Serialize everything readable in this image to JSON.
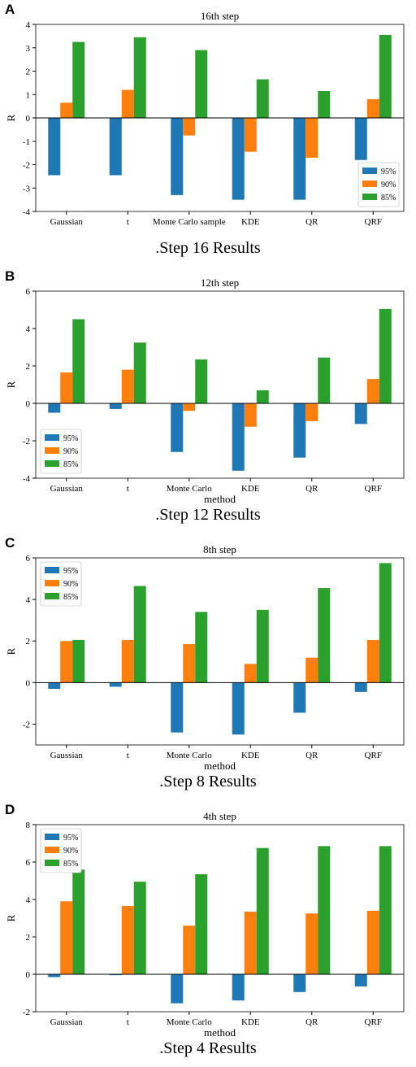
{
  "colors": {
    "s95": "#1f77b4",
    "s90": "#ff7f0e",
    "s85": "#2ca02c"
  },
  "panels": [
    {
      "letter": "A",
      "caption": ".Step 16 Results",
      "chart_data": {
        "type": "bar",
        "title": "16th step",
        "xlabel": "",
        "ylabel": "R",
        "ylim": [
          -4,
          4
        ],
        "yticks": [
          -4,
          -3,
          -2,
          -1,
          0,
          1,
          2,
          3,
          4
        ],
        "categories": [
          "Gaussian",
          "t",
          "Monte Carlo sample",
          "KDE",
          "QR",
          "QRF"
        ],
        "legend_position": "lower-right",
        "series": [
          {
            "name": "95%",
            "values": [
              -2.45,
              -2.45,
              -3.3,
              -3.5,
              -3.5,
              -1.8
            ]
          },
          {
            "name": "90%",
            "values": [
              0.65,
              1.2,
              -0.75,
              -1.45,
              -1.7,
              0.8
            ]
          },
          {
            "name": "85%",
            "values": [
              3.25,
              3.45,
              2.9,
              1.65,
              1.15,
              3.55
            ]
          }
        ]
      }
    },
    {
      "letter": "B",
      "caption": ".Step 12 Results",
      "chart_data": {
        "type": "bar",
        "title": "12th step",
        "xlabel": "method",
        "ylabel": "R",
        "ylim": [
          -4,
          6
        ],
        "yticks": [
          -4,
          -2,
          0,
          2,
          4,
          6
        ],
        "categories": [
          "Gaussian",
          "t",
          "Monte Carlo",
          "KDE",
          "QR",
          "QRF"
        ],
        "legend_position": "lower-left",
        "series": [
          {
            "name": "95%",
            "values": [
              -0.5,
              -0.3,
              -2.6,
              -3.6,
              -2.9,
              -1.1
            ]
          },
          {
            "name": "90%",
            "values": [
              1.65,
              1.8,
              -0.4,
              -1.25,
              -0.95,
              1.3
            ]
          },
          {
            "name": "85%",
            "values": [
              4.5,
              3.25,
              2.35,
              0.7,
              2.45,
              5.05
            ]
          }
        ]
      }
    },
    {
      "letter": "C",
      "caption": ".Step 8 Results",
      "chart_data": {
        "type": "bar",
        "title": "8th step",
        "xlabel": "method",
        "ylabel": "R",
        "ylim": [
          -3,
          6
        ],
        "yticks": [
          -2,
          0,
          2,
          4,
          6
        ],
        "categories": [
          "Gaussian",
          "t",
          "Monte Carlo",
          "KDE",
          "QR",
          "QRF"
        ],
        "legend_position": "upper-left",
        "series": [
          {
            "name": "95%",
            "values": [
              -0.3,
              -0.2,
              -2.4,
              -2.5,
              -1.45,
              -0.45
            ]
          },
          {
            "name": "90%",
            "values": [
              2.0,
              2.05,
              1.85,
              0.9,
              1.2,
              2.05
            ]
          },
          {
            "name": "85%",
            "values": [
              2.05,
              4.65,
              3.4,
              3.5,
              4.55,
              5.75
            ]
          }
        ]
      }
    },
    {
      "letter": "D",
      "caption": ".Step 4 Results",
      "chart_data": {
        "type": "bar",
        "title": "4th step",
        "xlabel": "method",
        "ylabel": "R",
        "ylim": [
          -2,
          8
        ],
        "yticks": [
          -2,
          0,
          2,
          4,
          6,
          8
        ],
        "categories": [
          "Gaussian",
          "t",
          "Monte Carlo",
          "KDE",
          "QR",
          "QRF"
        ],
        "legend_position": "upper-left",
        "series": [
          {
            "name": "95%",
            "values": [
              -0.15,
              -0.05,
              -1.55,
              -1.4,
              -0.95,
              -0.65
            ]
          },
          {
            "name": "90%",
            "values": [
              3.9,
              3.65,
              2.6,
              3.35,
              3.25,
              3.4
            ]
          },
          {
            "name": "85%",
            "values": [
              5.6,
              4.95,
              5.35,
              6.75,
              6.85,
              6.85
            ]
          }
        ]
      }
    }
  ]
}
